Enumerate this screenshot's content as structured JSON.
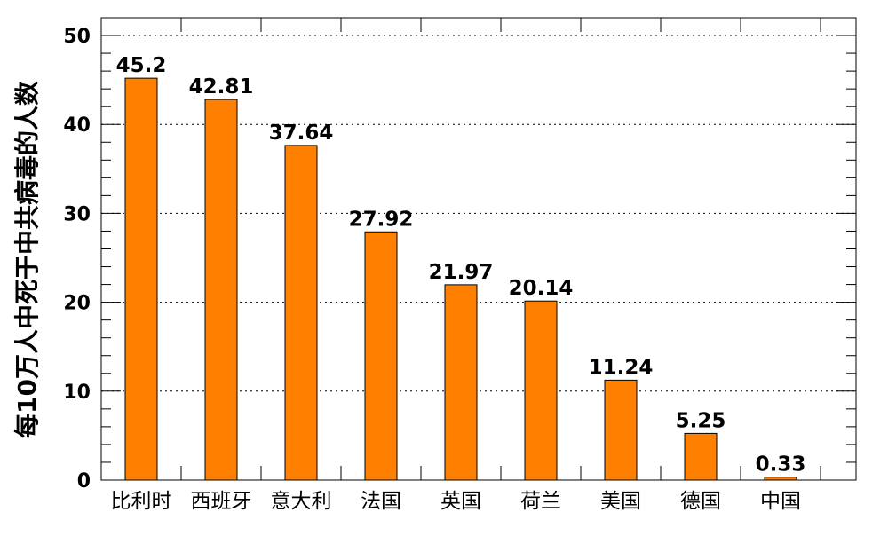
{
  "chart_data": {
    "type": "bar",
    "title": "",
    "xlabel": "",
    "ylabel": "每10万人中死于中共病毒的人数",
    "categories": [
      "比利时",
      "西班牙",
      "意大利",
      "法国",
      "英国",
      "荷兰",
      "美国",
      "德国",
      "中国"
    ],
    "values": [
      45.2,
      42.81,
      37.64,
      27.92,
      21.97,
      20.14,
      11.24,
      5.25,
      0.33
    ],
    "data_labels": [
      "45.2",
      "42.81",
      "37.64",
      "27.92",
      "21.97",
      "20.14",
      "11.24",
      "5.25",
      "0.33"
    ],
    "ylim": [
      0,
      52
    ],
    "yticks": [
      0,
      10,
      20,
      30,
      40,
      50
    ],
    "ytick_labels": [
      "0",
      "10",
      "20",
      "30",
      "40",
      "50"
    ],
    "grid": true,
    "grid_style": "dotted-horizontal",
    "bar_color": "#ff8000",
    "bar_edge_color": "#000000",
    "legend": "none"
  }
}
